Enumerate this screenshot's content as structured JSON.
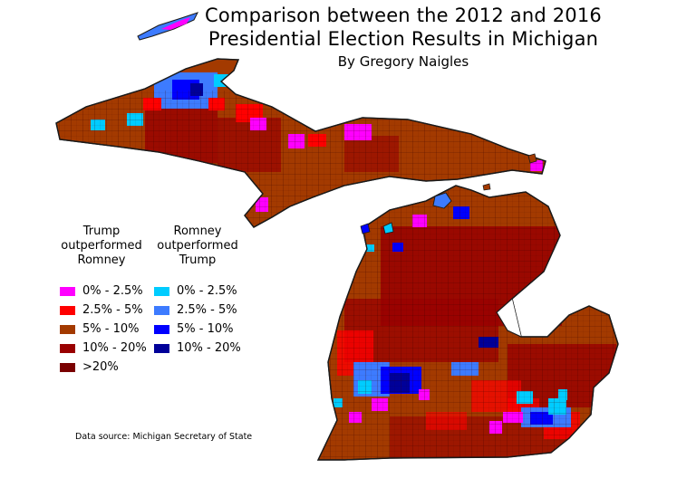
{
  "title": {
    "line1": "Comparison between the 2012 and 2016",
    "line2": "Presidential Election Results in Michigan",
    "byline": "By Gregory Naigles"
  },
  "legend": {
    "trump_heading": [
      "Trump",
      "outperformed",
      "Romney"
    ],
    "romney_heading": [
      "Romney",
      "outperformed",
      "Trump"
    ],
    "trump_items": [
      {
        "label": "0% - 2.5%",
        "color": "#ff00ff"
      },
      {
        "label": "2.5% - 5%",
        "color": "#ff0000"
      },
      {
        "label": "5% - 10%",
        "color": "#a33a00"
      },
      {
        "label": "10% - 20%",
        "color": "#990000"
      },
      {
        "label": ">20%",
        "color": "#7a0000"
      }
    ],
    "romney_items": [
      {
        "label": "0% - 2.5%",
        "color": "#00ccff"
      },
      {
        "label": "2.5% - 5%",
        "color": "#3d7bff"
      },
      {
        "label": "5% - 10%",
        "color": "#0000ff"
      },
      {
        "label": "10% - 20%",
        "color": "#000099"
      }
    ]
  },
  "source": "Data source: Michigan Secretary of State",
  "colors": {
    "background": "#ffffff",
    "border": "#1a1a1a",
    "base_fill": "#a33a00"
  }
}
